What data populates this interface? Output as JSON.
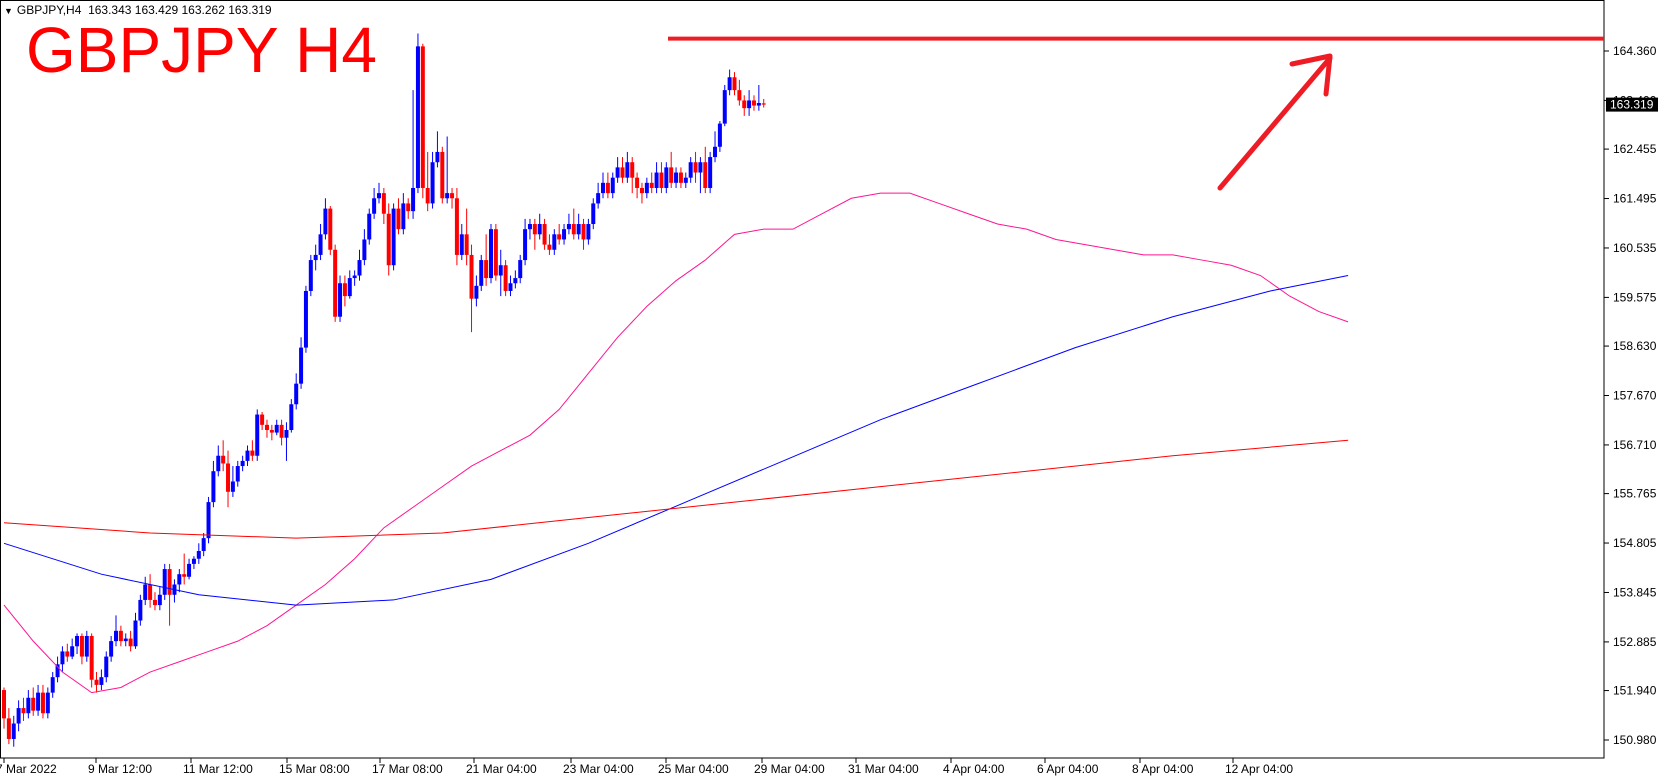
{
  "info": {
    "symbol_tf": "GBPJPY,H4",
    "ohlc": "163.343 163.429 163.262 163.319"
  },
  "chart_title": "GBPJPY H4",
  "current_price_label": "163.319",
  "chart_data": {
    "type": "candlestick",
    "title": "GBPJPY H4",
    "ylim": [
      150.5,
      164.8
    ],
    "y_ticks": [
      "164.360",
      "163.400",
      "162.455",
      "161.495",
      "160.535",
      "159.575",
      "158.630",
      "157.670",
      "156.710",
      "155.765",
      "154.805",
      "153.845",
      "152.885",
      "151.940",
      "150.980"
    ],
    "x_tick_labels": [
      "7 Mar 2022",
      "9 Mar 12:00",
      "11 Mar 12:00",
      "15 Mar 08:00",
      "17 Mar 08:00",
      "21 Mar 04:00",
      "23 Mar 04:00",
      "25 Mar 04:00",
      "29 Mar 04:00",
      "31 Mar 04:00",
      "4 Apr 04:00",
      "6 Apr 04:00",
      "8 Apr 04:00",
      "12 Apr 04:00"
    ],
    "current_price": 163.319,
    "resistance_level": 164.6,
    "candles": [
      [
        151.95,
        151.4,
        152.0,
        151.2
      ],
      [
        151.4,
        151.0,
        151.6,
        150.9
      ],
      [
        151.0,
        151.3,
        151.45,
        150.85
      ],
      [
        151.3,
        151.6,
        151.75,
        151.15
      ],
      [
        151.6,
        151.5,
        151.8,
        151.35
      ],
      [
        151.5,
        151.8,
        151.95,
        151.4
      ],
      [
        151.8,
        151.55,
        152.0,
        151.45
      ],
      [
        151.55,
        151.9,
        152.05,
        151.45
      ],
      [
        151.9,
        151.5,
        152.05,
        151.4
      ],
      [
        151.5,
        151.9,
        152.0,
        151.4
      ],
      [
        151.9,
        152.2,
        152.3,
        151.8
      ],
      [
        152.2,
        152.45,
        152.6,
        152.1
      ],
      [
        152.45,
        152.7,
        152.8,
        152.3
      ],
      [
        152.7,
        152.6,
        152.85,
        152.5
      ],
      [
        152.6,
        152.8,
        152.95,
        152.55
      ],
      [
        152.8,
        153.0,
        153.05,
        152.65
      ],
      [
        153.0,
        152.6,
        153.05,
        152.45
      ],
      [
        152.6,
        153.0,
        153.1,
        152.5
      ],
      [
        153.0,
        152.15,
        153.05,
        152.0
      ],
      [
        152.15,
        152.05,
        152.3,
        151.9
      ],
      [
        152.05,
        152.2,
        152.35,
        151.95
      ],
      [
        152.2,
        152.6,
        152.7,
        152.1
      ],
      [
        152.6,
        152.9,
        153.0,
        152.5
      ],
      [
        152.9,
        153.1,
        153.4,
        152.8
      ],
      [
        153.1,
        152.9,
        153.2,
        152.8
      ],
      [
        152.9,
        152.95,
        153.05,
        152.8
      ],
      [
        152.95,
        152.8,
        153.1,
        152.7
      ],
      [
        152.8,
        153.3,
        153.45,
        152.75
      ],
      [
        153.3,
        153.7,
        153.8,
        153.2
      ],
      [
        153.7,
        154.0,
        154.15,
        153.6
      ],
      [
        154.0,
        153.7,
        154.2,
        153.55
      ],
      [
        153.7,
        153.6,
        153.85,
        153.5
      ],
      [
        153.6,
        153.8,
        153.95,
        153.5
      ],
      [
        153.8,
        154.3,
        154.4,
        153.7
      ],
      [
        154.3,
        153.8,
        154.4,
        153.2
      ],
      [
        153.8,
        154.0,
        154.1,
        153.65
      ],
      [
        154.0,
        154.2,
        154.3,
        153.85
      ],
      [
        154.2,
        154.15,
        154.6,
        154.0
      ],
      [
        154.15,
        154.4,
        154.5,
        154.1
      ],
      [
        154.4,
        154.5,
        154.55,
        154.3
      ],
      [
        154.5,
        154.65,
        154.8,
        154.4
      ],
      [
        154.65,
        154.9,
        155.0,
        154.55
      ],
      [
        154.9,
        155.6,
        155.7,
        154.8
      ],
      [
        155.6,
        156.2,
        156.4,
        155.5
      ],
      [
        156.2,
        156.5,
        156.7,
        156.1
      ],
      [
        156.5,
        156.35,
        156.8,
        156.2
      ],
      [
        156.35,
        155.8,
        156.6,
        155.5
      ],
      [
        155.8,
        156.0,
        156.3,
        155.7
      ],
      [
        156.0,
        156.3,
        156.4,
        155.9
      ],
      [
        156.3,
        156.4,
        156.5,
        156.2
      ],
      [
        156.4,
        156.6,
        156.7,
        156.3
      ],
      [
        156.6,
        156.5,
        156.8,
        156.4
      ],
      [
        156.5,
        157.3,
        157.4,
        156.4
      ],
      [
        157.3,
        157.1,
        157.35,
        157.0
      ],
      [
        157.1,
        157.0,
        157.2,
        156.85
      ],
      [
        157.0,
        156.95,
        157.1,
        156.8
      ],
      [
        156.95,
        157.1,
        157.2,
        156.9
      ],
      [
        157.1,
        156.85,
        157.2,
        156.7
      ],
      [
        156.85,
        157.0,
        157.15,
        156.4
      ],
      [
        157.0,
        157.5,
        157.6,
        156.95
      ],
      [
        157.5,
        157.9,
        158.1,
        157.4
      ],
      [
        157.9,
        158.6,
        158.8,
        157.8
      ],
      [
        158.6,
        159.7,
        159.8,
        158.5
      ],
      [
        159.7,
        160.3,
        160.4,
        159.6
      ],
      [
        160.3,
        160.4,
        160.6,
        160.1
      ],
      [
        160.4,
        160.8,
        161.0,
        160.3
      ],
      [
        160.8,
        161.3,
        161.5,
        160.7
      ],
      [
        161.3,
        160.5,
        161.35,
        160.4
      ],
      [
        160.5,
        159.2,
        160.6,
        159.1
      ],
      [
        159.2,
        159.85,
        160.0,
        159.1
      ],
      [
        159.85,
        159.6,
        160.0,
        159.4
      ],
      [
        159.6,
        159.95,
        160.1,
        159.55
      ],
      [
        159.95,
        160.0,
        160.1,
        159.8
      ],
      [
        160.0,
        160.3,
        160.5,
        159.9
      ],
      [
        160.3,
        160.7,
        160.9,
        160.2
      ],
      [
        160.7,
        161.2,
        161.3,
        160.6
      ],
      [
        161.2,
        161.5,
        161.7,
        161.1
      ],
      [
        161.5,
        161.6,
        161.8,
        161.4
      ],
      [
        161.6,
        161.2,
        161.7,
        161.0
      ],
      [
        161.2,
        160.2,
        161.4,
        160.0
      ],
      [
        160.2,
        161.3,
        161.4,
        160.1
      ],
      [
        161.3,
        160.9,
        161.5,
        160.8
      ],
      [
        160.9,
        161.4,
        161.6,
        160.8
      ],
      [
        161.4,
        161.25,
        161.5,
        161.1
      ],
      [
        161.25,
        161.7,
        163.6,
        161.1
      ],
      [
        161.7,
        164.45,
        164.7,
        161.6
      ],
      [
        164.45,
        161.7,
        164.5,
        161.5
      ],
      [
        161.7,
        161.4,
        162.4,
        161.25
      ],
      [
        161.4,
        162.2,
        162.4,
        161.3
      ],
      [
        162.2,
        162.4,
        162.8,
        162.1
      ],
      [
        162.4,
        161.5,
        162.5,
        161.4
      ],
      [
        161.5,
        161.6,
        162.7,
        161.4
      ],
      [
        161.6,
        161.5,
        161.7,
        161.3
      ],
      [
        161.5,
        160.4,
        161.7,
        160.2
      ],
      [
        160.4,
        160.8,
        161.0,
        160.3
      ],
      [
        160.8,
        160.4,
        161.3,
        160.2
      ],
      [
        160.4,
        159.55,
        160.6,
        158.9
      ],
      [
        159.55,
        159.8,
        160.0,
        159.4
      ],
      [
        159.8,
        160.3,
        160.4,
        159.7
      ],
      [
        160.3,
        159.95,
        160.8,
        159.8
      ],
      [
        159.95,
        160.9,
        161.0,
        159.85
      ],
      [
        160.9,
        160.0,
        161.0,
        159.9
      ],
      [
        160.0,
        160.2,
        160.5,
        159.6
      ],
      [
        160.2,
        159.7,
        160.3,
        159.6
      ],
      [
        159.7,
        159.85,
        160.0,
        159.6
      ],
      [
        159.85,
        159.95,
        160.1,
        159.75
      ],
      [
        159.95,
        160.3,
        160.4,
        159.85
      ],
      [
        160.3,
        160.9,
        161.1,
        160.2
      ],
      [
        160.9,
        161.0,
        161.1,
        160.7
      ],
      [
        161.0,
        160.8,
        161.1,
        160.5
      ],
      [
        160.8,
        161.0,
        161.2,
        160.7
      ],
      [
        161.0,
        160.6,
        161.1,
        160.5
      ],
      [
        160.6,
        160.5,
        160.8,
        160.4
      ],
      [
        160.5,
        160.8,
        160.9,
        160.4
      ],
      [
        160.8,
        160.7,
        161.0,
        160.6
      ],
      [
        160.7,
        160.9,
        161.0,
        160.6
      ],
      [
        160.9,
        161.0,
        161.2,
        160.8
      ],
      [
        161.0,
        160.8,
        161.3,
        160.7
      ],
      [
        160.8,
        161.0,
        161.2,
        160.7
      ],
      [
        161.0,
        160.7,
        161.1,
        160.5
      ],
      [
        160.7,
        161.0,
        161.1,
        160.6
      ],
      [
        161.0,
        161.4,
        161.5,
        160.9
      ],
      [
        161.4,
        161.6,
        161.8,
        161.3
      ],
      [
        161.6,
        161.8,
        162.0,
        161.5
      ],
      [
        161.8,
        161.6,
        162.0,
        161.5
      ],
      [
        161.6,
        161.9,
        162.0,
        161.5
      ],
      [
        161.9,
        162.1,
        162.3,
        161.8
      ],
      [
        162.1,
        161.9,
        162.3,
        161.8
      ],
      [
        161.9,
        162.2,
        162.4,
        161.8
      ],
      [
        162.2,
        161.9,
        162.3,
        161.6
      ],
      [
        161.9,
        161.7,
        162.0,
        161.5
      ],
      [
        161.7,
        161.6,
        161.8,
        161.4
      ],
      [
        161.6,
        161.8,
        161.9,
        161.5
      ],
      [
        161.8,
        161.7,
        162.0,
        161.6
      ],
      [
        161.7,
        162.0,
        162.2,
        161.6
      ],
      [
        162.0,
        161.7,
        162.2,
        161.6
      ],
      [
        161.7,
        162.1,
        162.2,
        161.6
      ],
      [
        162.1,
        161.8,
        162.4,
        161.7
      ],
      [
        161.8,
        162.0,
        162.1,
        161.7
      ],
      [
        162.0,
        161.8,
        162.1,
        161.7
      ],
      [
        161.8,
        161.9,
        162.0,
        161.7
      ],
      [
        161.9,
        162.2,
        162.3,
        161.8
      ],
      [
        162.2,
        162.0,
        162.4,
        161.8
      ],
      [
        162.0,
        162.2,
        162.3,
        161.6
      ],
      [
        162.2,
        161.7,
        162.5,
        161.6
      ],
      [
        161.7,
        162.3,
        162.4,
        161.6
      ],
      [
        162.3,
        162.5,
        162.8,
        162.2
      ],
      [
        162.5,
        162.95,
        163.0,
        162.4
      ],
      [
        162.95,
        163.6,
        163.7,
        162.9
      ],
      [
        163.6,
        163.85,
        164.0,
        163.5
      ],
      [
        163.85,
        163.6,
        163.95,
        163.5
      ],
      [
        163.6,
        163.4,
        163.8,
        163.3
      ],
      [
        163.4,
        163.25,
        163.5,
        163.1
      ],
      [
        163.25,
        163.4,
        163.6,
        163.1
      ],
      [
        163.4,
        163.3,
        163.5,
        163.2
      ],
      [
        163.3,
        163.35,
        163.7,
        163.2
      ],
      [
        163.343,
        163.319,
        163.429,
        163.262
      ]
    ],
    "moving_averages": [
      {
        "color": "#ff1493",
        "points": [
          [
            0,
            153.6
          ],
          [
            6,
            152.9
          ],
          [
            12,
            152.3
          ],
          [
            18,
            151.9
          ],
          [
            24,
            152.0
          ],
          [
            30,
            152.3
          ],
          [
            36,
            152.5
          ],
          [
            42,
            152.7
          ],
          [
            48,
            152.9
          ],
          [
            54,
            153.2
          ],
          [
            60,
            153.6
          ],
          [
            66,
            154.0
          ],
          [
            72,
            154.5
          ],
          [
            78,
            155.1
          ],
          [
            84,
            155.5
          ],
          [
            90,
            155.9
          ],
          [
            96,
            156.3
          ],
          [
            102,
            156.6
          ],
          [
            108,
            156.9
          ],
          [
            114,
            157.4
          ],
          [
            120,
            158.1
          ],
          [
            126,
            158.8
          ],
          [
            132,
            159.4
          ],
          [
            138,
            159.9
          ],
          [
            144,
            160.3
          ],
          [
            150,
            160.8
          ],
          [
            156,
            160.9
          ],
          [
            162,
            160.9
          ],
          [
            168,
            161.2
          ],
          [
            174,
            161.5
          ],
          [
            180,
            161.6
          ],
          [
            186,
            161.6
          ],
          [
            192,
            161.4
          ],
          [
            198,
            161.2
          ],
          [
            204,
            161.0
          ],
          [
            210,
            160.9
          ],
          [
            216,
            160.7
          ],
          [
            222,
            160.6
          ],
          [
            228,
            160.5
          ],
          [
            234,
            160.4
          ],
          [
            240,
            160.4
          ],
          [
            246,
            160.3
          ],
          [
            252,
            160.2
          ],
          [
            258,
            160.0
          ],
          [
            264,
            159.6
          ],
          [
            270,
            159.3
          ],
          [
            276,
            159.1
          ]
        ]
      },
      {
        "color": "#0000ff",
        "points": [
          [
            0,
            154.8
          ],
          [
            20,
            154.2
          ],
          [
            40,
            153.8
          ],
          [
            60,
            153.6
          ],
          [
            80,
            153.7
          ],
          [
            100,
            154.1
          ],
          [
            120,
            154.8
          ],
          [
            140,
            155.6
          ],
          [
            160,
            156.4
          ],
          [
            180,
            157.2
          ],
          [
            200,
            157.9
          ],
          [
            220,
            158.6
          ],
          [
            240,
            159.2
          ],
          [
            260,
            159.7
          ],
          [
            276,
            160.0
          ]
        ]
      },
      {
        "color": "#ff0000",
        "points": [
          [
            0,
            155.2
          ],
          [
            30,
            155.0
          ],
          [
            60,
            154.9
          ],
          [
            90,
            155.0
          ],
          [
            120,
            155.3
          ],
          [
            150,
            155.6
          ],
          [
            180,
            155.9
          ],
          [
            210,
            156.2
          ],
          [
            240,
            156.5
          ],
          [
            276,
            156.8
          ]
        ]
      }
    ]
  }
}
